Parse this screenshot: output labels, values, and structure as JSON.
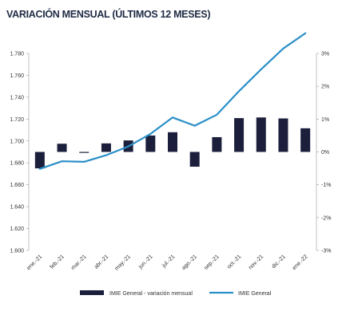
{
  "title": "VARIACIÓN MENSUAL (ÚLTIMOS 12 MESES)",
  "chart_data": {
    "type": "bar+line",
    "categories": [
      "ene.-21",
      "feb.-21",
      "mar.-21",
      "abr.-21",
      "may.-21",
      "jun.-21",
      "jul.-21",
      "ago.-21",
      "sep.-21",
      "oct.-21",
      "nov.-21",
      "dic.-21",
      "ene.-22"
    ],
    "series": [
      {
        "name": "IMIE General - variación mensual",
        "type": "bar",
        "axis": "right",
        "unit": "%",
        "color": "#1c1f3b",
        "values": [
          -0.5,
          0.25,
          -0.02,
          0.26,
          0.35,
          0.5,
          0.6,
          -0.45,
          0.45,
          1.03,
          1.05,
          1.02,
          0.72
        ]
      },
      {
        "name": "IMIE General",
        "type": "line",
        "axis": "left",
        "color": "#2a8fc7",
        "values": [
          1.6745,
          1.6815,
          1.681,
          1.687,
          1.695,
          1.7065,
          1.7215,
          1.714,
          1.724,
          1.7455,
          1.7655,
          1.7845,
          1.7985
        ]
      }
    ],
    "y_left": {
      "ylim": [
        1.6,
        1.78
      ],
      "ticks": [
        "1.600",
        "1.620",
        "1.640",
        "1.660",
        "1.680",
        "1.700",
        "1.720",
        "1.740",
        "1.760",
        "1.780"
      ]
    },
    "y_right": {
      "ylim": [
        -3,
        3
      ],
      "ticks": [
        "-3%",
        "-2%",
        "-1%",
        "0%",
        "1%",
        "2%",
        "3%"
      ]
    },
    "grid": false,
    "legend": "bottom"
  }
}
